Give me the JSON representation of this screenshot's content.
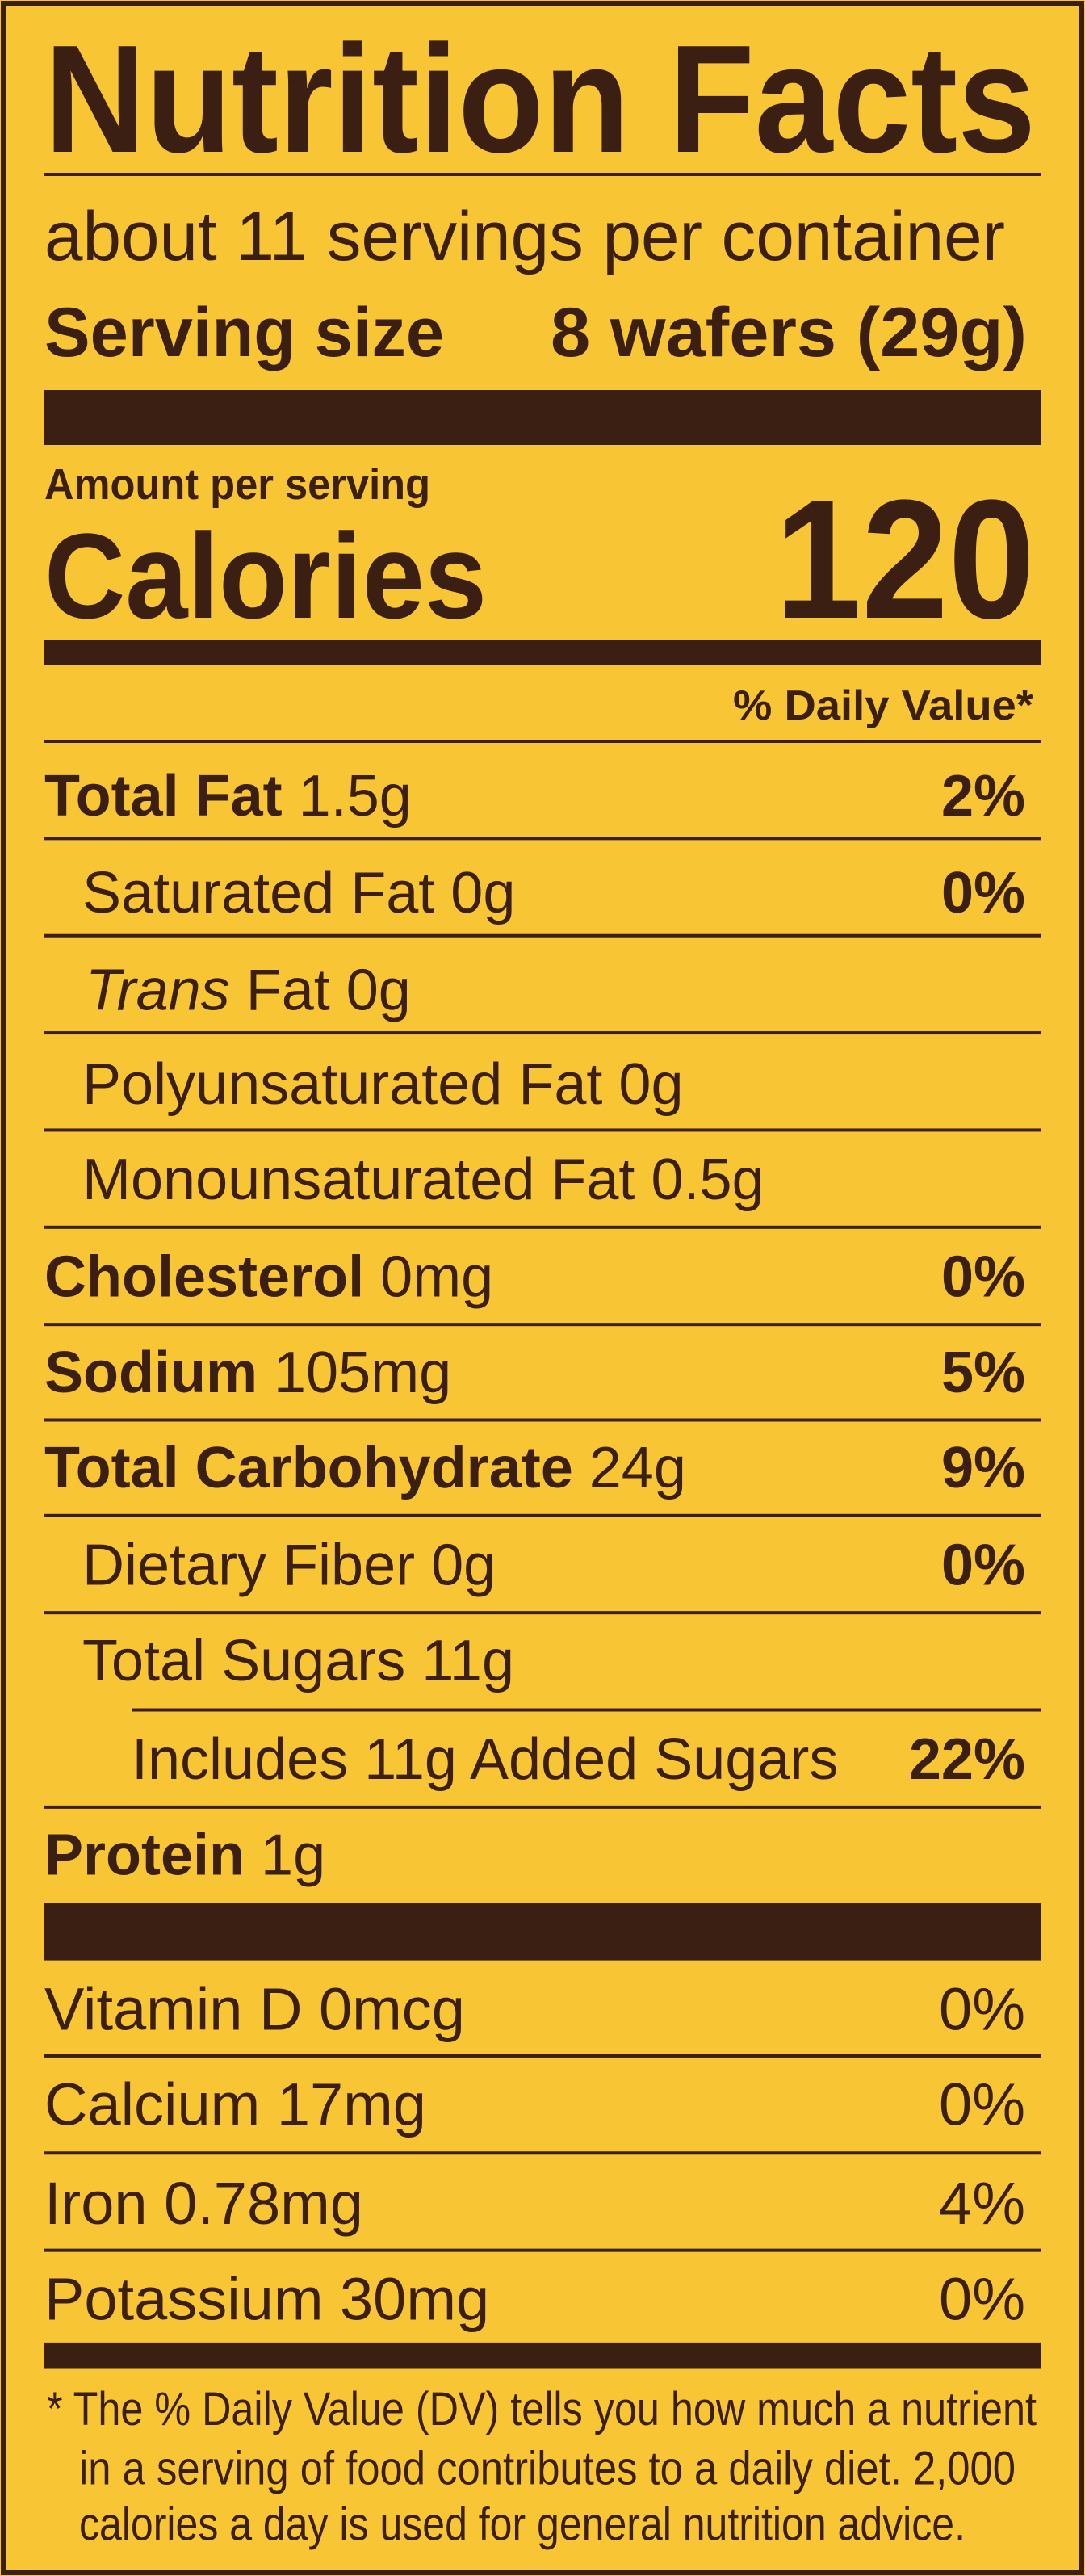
{
  "header": {
    "title": "Nutrition Facts",
    "servings": "about 11 servings per container",
    "serving_size_label": "Serving size",
    "serving_size_value": "8 wafers (29g)"
  },
  "calories": {
    "amount_label": "Amount per serving",
    "label": "Calories",
    "value": "120"
  },
  "dv_header": "% Daily Value*",
  "nutrients": [
    {
      "name": "Total Fat",
      "amount": "1.5g",
      "dv": "2%",
      "bold": true,
      "indent": 0
    },
    {
      "name": "Saturated Fat",
      "amount": "0g",
      "dv": "0%",
      "bold": false,
      "indent": 1
    },
    {
      "name_italic": "Trans",
      "name": "Fat",
      "amount": "0g",
      "bold": false,
      "indent": 1
    },
    {
      "name": "Polyunsaturated Fat",
      "amount": "0g",
      "bold": false,
      "indent": 1
    },
    {
      "name": "Monounsaturated Fat",
      "amount": "0.5g",
      "bold": false,
      "indent": 1
    },
    {
      "name": "Cholesterol",
      "amount": "0mg",
      "dv": "0%",
      "bold": true,
      "indent": 0
    },
    {
      "name": "Sodium",
      "amount": "105mg",
      "dv": "5%",
      "bold": true,
      "indent": 0
    },
    {
      "name": "Total Carbohydrate",
      "amount": "24g",
      "dv": "9%",
      "bold": true,
      "indent": 0
    },
    {
      "name": "Dietary Fiber",
      "amount": "0g",
      "dv": "0%",
      "bold": false,
      "indent": 1
    },
    {
      "name": "Total Sugars",
      "amount": "11g",
      "bold": false,
      "indent": 1
    },
    {
      "name": "Includes 11g Added Sugars",
      "dv": "22%",
      "bold": false,
      "indent": 2
    },
    {
      "name": "Protein",
      "amount": "1g",
      "bold": true,
      "indent": 0
    }
  ],
  "vitamins": [
    {
      "name": "Vitamin D",
      "amount": "0mcg",
      "dv": "0%"
    },
    {
      "name": "Calcium",
      "amount": "17mg",
      "dv": "0%"
    },
    {
      "name": "Iron",
      "amount": "0.78mg",
      "dv": "4%"
    },
    {
      "name": "Potassium",
      "amount": "30mg",
      "dv": "0%"
    }
  ],
  "footnote": [
    "* The % Daily Value (DV) tells you how much a nutrient",
    "in a serving of food contributes to a daily diet. 2,000",
    "calories a day is used for general nutrition advice."
  ]
}
